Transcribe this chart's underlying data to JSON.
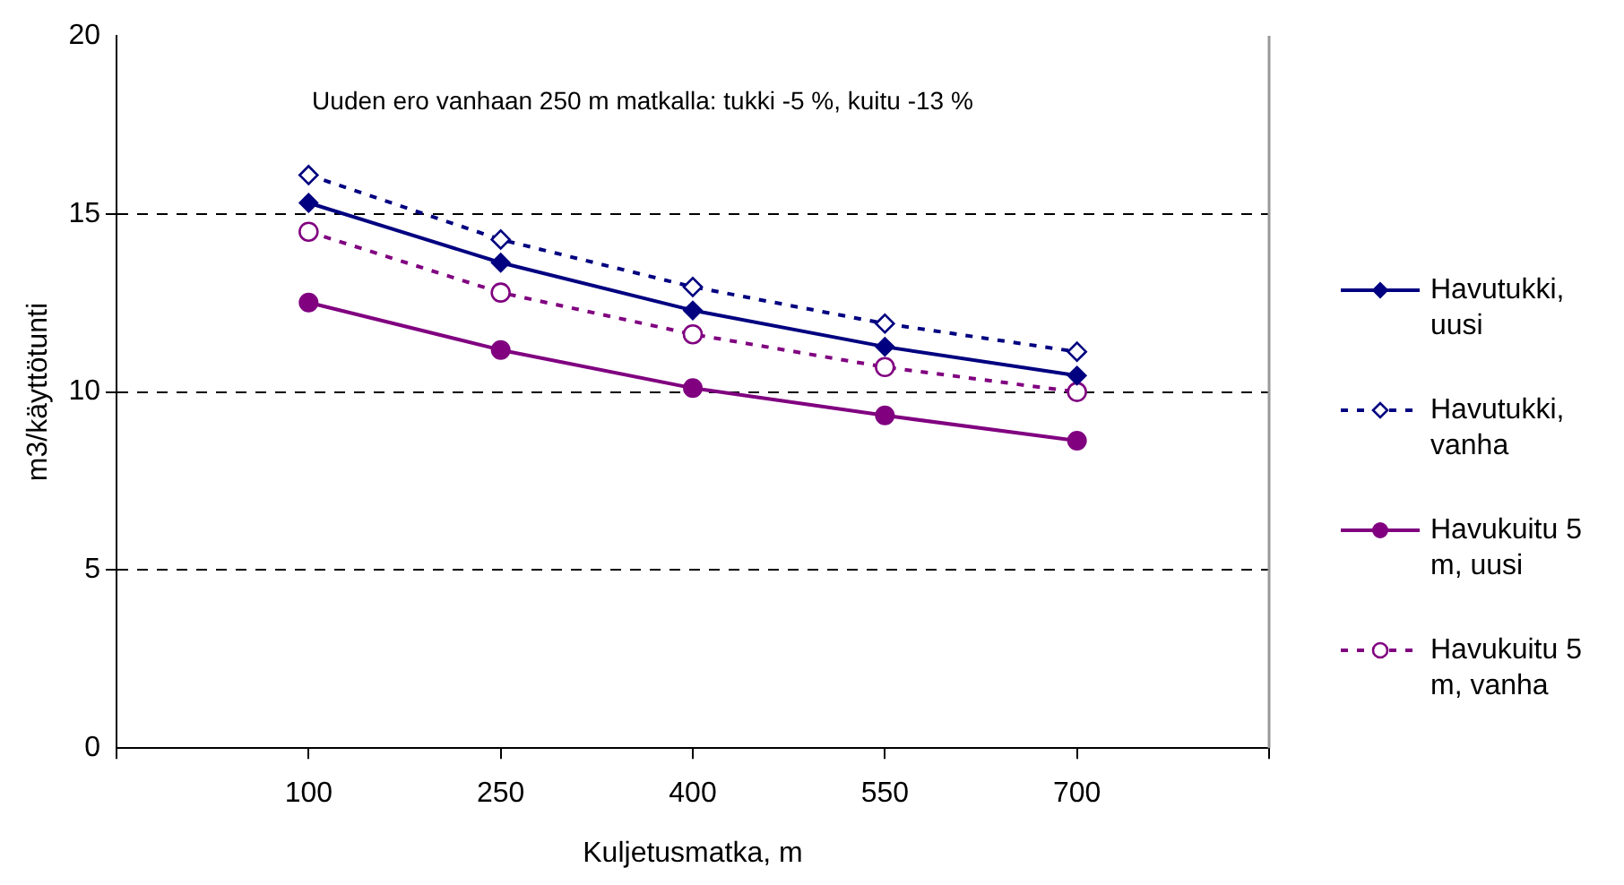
{
  "chart_data": {
    "type": "line",
    "xlabel": "Kuljetusmatka, m",
    "ylabel": "m3/käyttötunti",
    "annotations": [
      "Uuden ero vanhaan 250 m matkalla: tukki -5 %, kuitu -13 %"
    ],
    "x": [
      100,
      250,
      400,
      550,
      700
    ],
    "xlim": [
      -50,
      850
    ],
    "xticks": [
      {
        "value": -50,
        "label": null
      },
      100,
      250,
      400,
      550,
      700,
      {
        "value": 850,
        "label": null
      }
    ],
    "ylim": [
      0,
      20
    ],
    "yticks": [
      0,
      5,
      10,
      15,
      20
    ],
    "grid": "y",
    "legend": "right",
    "series": [
      {
        "name": "Havutukki, uusi",
        "color": "#000080",
        "marker": "diamond",
        "line_style": "solid",
        "values": [
          15.31,
          13.63,
          12.29,
          11.27,
          10.46
        ]
      },
      {
        "name": "Havutukki, vanha",
        "color": "#000080",
        "marker": "diamond",
        "line_style": "dashed",
        "values": [
          16.09,
          14.28,
          12.95,
          11.92,
          11.13
        ]
      },
      {
        "name": "Havukuitu 5 m, uusi",
        "color": "#800080",
        "marker": "circle",
        "line_style": "solid",
        "values": [
          12.51,
          11.18,
          10.11,
          9.34,
          8.63
        ]
      },
      {
        "name": "Havukuitu 5 m, vanha",
        "color": "#800080",
        "marker": "circle",
        "line_style": "dashed",
        "values": [
          14.5,
          12.79,
          11.62,
          10.7,
          10.0
        ]
      }
    ]
  }
}
